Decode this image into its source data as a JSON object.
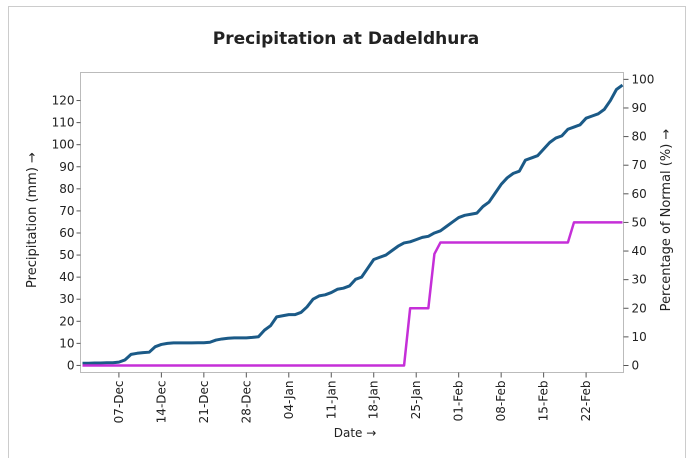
{
  "chart_data": {
    "type": "line",
    "title": "Precipitation at Dadeldhura",
    "xlabel": "Date →",
    "ylabel": "Precipitation (mm) →",
    "y2label": "Percentage of Normal (%) →",
    "x": [
      "01-Dec",
      "02-Dec",
      "03-Dec",
      "04-Dec",
      "05-Dec",
      "06-Dec",
      "07-Dec",
      "08-Dec",
      "09-Dec",
      "10-Dec",
      "11-Dec",
      "12-Dec",
      "13-Dec",
      "14-Dec",
      "15-Dec",
      "16-Dec",
      "17-Dec",
      "18-Dec",
      "19-Dec",
      "20-Dec",
      "21-Dec",
      "22-Dec",
      "23-Dec",
      "24-Dec",
      "25-Dec",
      "26-Dec",
      "27-Dec",
      "28-Dec",
      "29-Dec",
      "30-Dec",
      "31-Dec",
      "01-Jan",
      "02-Jan",
      "03-Jan",
      "04-Jan",
      "05-Jan",
      "06-Jan",
      "07-Jan",
      "08-Jan",
      "09-Jan",
      "10-Jan",
      "11-Jan",
      "12-Jan",
      "13-Jan",
      "14-Jan",
      "15-Jan",
      "16-Jan",
      "17-Jan",
      "18-Jan",
      "19-Jan",
      "20-Jan",
      "21-Jan",
      "22-Jan",
      "23-Jan",
      "24-Jan",
      "25-Jan",
      "26-Jan",
      "27-Jan",
      "28-Jan",
      "29-Jan",
      "30-Jan",
      "31-Jan",
      "01-Feb",
      "02-Feb",
      "03-Feb",
      "04-Feb",
      "05-Feb",
      "06-Feb",
      "07-Feb",
      "08-Feb",
      "09-Feb",
      "10-Feb",
      "11-Feb",
      "12-Feb",
      "13-Feb",
      "14-Feb",
      "15-Feb",
      "16-Feb",
      "17-Feb",
      "18-Feb",
      "19-Feb",
      "20-Feb",
      "21-Feb",
      "22-Feb",
      "23-Feb",
      "24-Feb",
      "25-Feb",
      "26-Feb",
      "27-Feb",
      "28-Feb"
    ],
    "xticks": [
      "07-Dec",
      "14-Dec",
      "21-Dec",
      "28-Dec",
      "04-Jan",
      "11-Jan",
      "18-Jan",
      "25-Jan",
      "01-Feb",
      "08-Feb",
      "15-Feb",
      "22-Feb"
    ],
    "series": [
      {
        "color": "#1b5a87",
        "values": [
          1,
          1,
          1.1,
          1.1,
          1.2,
          1.2,
          1.5,
          2.5,
          5,
          5.5,
          5.8,
          6,
          8.5,
          9.5,
          10,
          10.2,
          10.2,
          10.2,
          10.2,
          10.3,
          10.3,
          10.5,
          11.5,
          12,
          12.3,
          12.5,
          12.5,
          12.5,
          12.7,
          13,
          16,
          18,
          22,
          22.5,
          23,
          23,
          24,
          26.5,
          30,
          31.5,
          32,
          33,
          34.5,
          35,
          36,
          39,
          40,
          44,
          48,
          49,
          50,
          52,
          54,
          55.5,
          56,
          57,
          58,
          58.5,
          60,
          61,
          63,
          65,
          67,
          68,
          68.5,
          69,
          72,
          74,
          78,
          82,
          85,
          87,
          88,
          93,
          94,
          95,
          98,
          101,
          103,
          104,
          107,
          108,
          109,
          112,
          113,
          114,
          116,
          120,
          125,
          127
        ]
      },
      {
        "color": "#c52fd8",
        "axis": "y2",
        "values": [
          0,
          0,
          0,
          0,
          0,
          0,
          0,
          0,
          0,
          0,
          0,
          0,
          0,
          0,
          0,
          0,
          0,
          0,
          0,
          0,
          0,
          0,
          0,
          0,
          0,
          0,
          0,
          0,
          0,
          0,
          0,
          0,
          0,
          0,
          0,
          0,
          0,
          0,
          0,
          0,
          0,
          0,
          0,
          0,
          0,
          0,
          0,
          0,
          0,
          0,
          0,
          0,
          0,
          0,
          20,
          20,
          20,
          20,
          39,
          43,
          43,
          43,
          43,
          43,
          43,
          43,
          43,
          43,
          43,
          43,
          43,
          43,
          43,
          43,
          43,
          43,
          43,
          43,
          43,
          43,
          43,
          50,
          50,
          50,
          50,
          50,
          50,
          50,
          50,
          50
        ]
      }
    ],
    "ylim": [
      -3.2,
      132.7
    ],
    "yticks": [
      0,
      10,
      20,
      30,
      40,
      50,
      60,
      70,
      80,
      90,
      100,
      110,
      120
    ],
    "y2lim": [
      -2.45,
      102.4
    ],
    "y2ticks": [
      0,
      10,
      20,
      30,
      40,
      50,
      60,
      70,
      80,
      90,
      100
    ],
    "grid": false
  }
}
